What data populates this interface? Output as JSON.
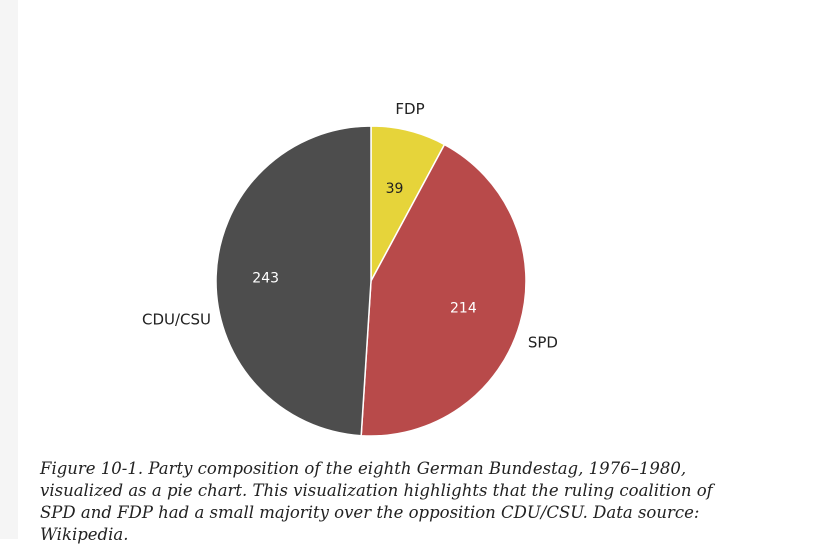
{
  "chart_data": {
    "type": "pie",
    "start": "top",
    "direction": "clockwise",
    "slices": [
      {
        "label": "FDP",
        "value": 39,
        "color": "#e6d43a"
      },
      {
        "label": "SPD",
        "value": 214,
        "color": "#b84a4a"
      },
      {
        "label": "CDU/CSU",
        "value": 243,
        "color": "#4d4d4d"
      }
    ],
    "title": ""
  },
  "caption": "Figure 10-1. Party composition of the eighth German Bundestag, 1976–1980, visualized as a pie chart. This visualization highlights that the ruling coalition of SPD and FDP had a small majority over the opposition CDU/CSU. Data source: Wikipedia."
}
